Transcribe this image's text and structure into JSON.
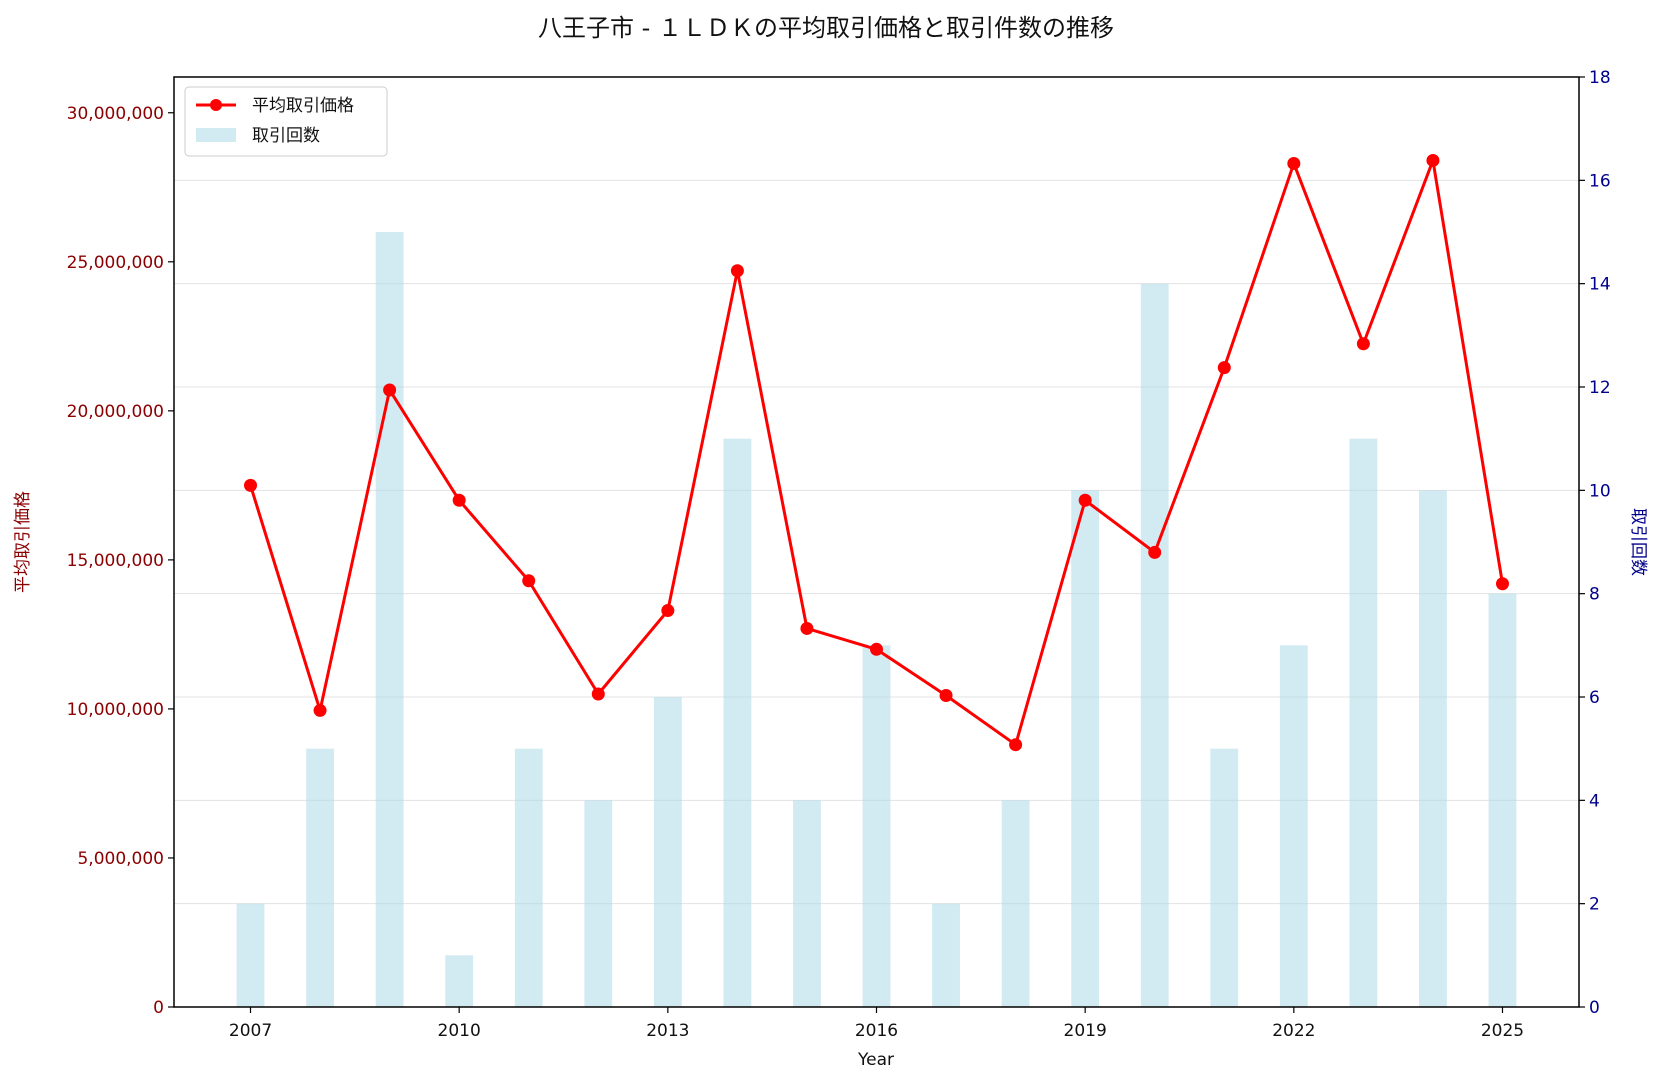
{
  "chart_data": {
    "type": "bar+line",
    "title": "八王子市 - １ＬＤＫの平均取引価格と取引件数の推移",
    "xlabel": "Year",
    "ylabel_left": "平均取引価格",
    "ylabel_right": "取引回数",
    "x": [
      2007,
      2008,
      2009,
      2010,
      2011,
      2012,
      2013,
      2014,
      2015,
      2016,
      2017,
      2018,
      2019,
      2020,
      2021,
      2022,
      2023,
      2024,
      2025
    ],
    "x_ticks": [
      2007,
      2010,
      2013,
      2016,
      2019,
      2022,
      2025
    ],
    "xlim": [
      2005.9,
      2026.1
    ],
    "ylim_left": [
      0,
      31200000
    ],
    "ylim_right": [
      0,
      18
    ],
    "left_ticks": [
      0,
      5000000,
      10000000,
      15000000,
      20000000,
      25000000,
      30000000
    ],
    "left_tick_labels": [
      "0",
      "5,000,000",
      "10,000,000",
      "15,000,000",
      "20,000,000",
      "25,000,000",
      "30,000,000"
    ],
    "right_ticks": [
      0,
      2,
      4,
      6,
      8,
      10,
      12,
      14,
      16,
      18
    ],
    "right_tick_labels": [
      "0",
      "2",
      "4",
      "6",
      "8",
      "10",
      "12",
      "14",
      "16",
      "18"
    ],
    "grid": true,
    "legend_position": "top-left",
    "series": [
      {
        "name": "平均取引価格",
        "kind": "line",
        "axis": "left",
        "color": "#ff0000",
        "values": [
          17500000,
          9950000,
          20700000,
          17000000,
          14300000,
          10500000,
          13300000,
          24700000,
          12700000,
          12000000,
          10450000,
          8800000,
          17000000,
          15250000,
          21450000,
          28300000,
          22250000,
          28400000,
          14200000
        ]
      },
      {
        "name": "取引回数",
        "kind": "bar",
        "axis": "right",
        "color": "#add8e6",
        "values": [
          2,
          5,
          15,
          1,
          5,
          4,
          6,
          11,
          4,
          7,
          2,
          4,
          10,
          14,
          5,
          7,
          11,
          10,
          8
        ]
      }
    ]
  }
}
